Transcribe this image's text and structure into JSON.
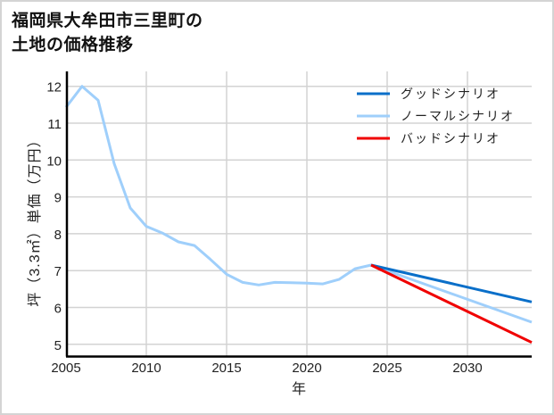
{
  "title_lines": [
    "福岡県大牟田市三里町の",
    "土地の価格推移"
  ],
  "colors": {
    "good": "#0a6fc9",
    "normal": "#9fcffb",
    "bad": "#f00000",
    "grid": "#d3d3d3",
    "axis": "#000000",
    "frame": "#d4d4d4"
  },
  "chart_data": {
    "type": "line",
    "title": "福岡県大牟田市三里町の土地の価格推移",
    "xlabel": "年",
    "ylabel": "坪（3.3㎡）単価（万円）",
    "xlim": [
      2005,
      2034
    ],
    "ylim": [
      4.68,
      12.4
    ],
    "x_ticks": [
      2005,
      2010,
      2015,
      2020,
      2025,
      2030
    ],
    "y_ticks": [
      5,
      6,
      7,
      8,
      9,
      10,
      11,
      12
    ],
    "grid": true,
    "legend_position": "upper right",
    "series": [
      {
        "name": "グッドシナリオ",
        "color": "#0a6fc9",
        "x": [
          2024,
          2034
        ],
        "values": [
          7.15,
          6.15
        ]
      },
      {
        "name": "ノーマルシナリオ",
        "color": "#9fcffb",
        "x": [
          2005,
          2006,
          2007,
          2008,
          2009,
          2010,
          2011,
          2012,
          2013,
          2014,
          2015,
          2016,
          2017,
          2018,
          2019,
          2020,
          2021,
          2022,
          2023,
          2024,
          2034
        ],
        "values": [
          11.43,
          12.0,
          11.62,
          9.9,
          8.7,
          8.2,
          8.02,
          7.78,
          7.68,
          7.3,
          6.9,
          6.68,
          6.61,
          6.68,
          6.67,
          6.66,
          6.64,
          6.76,
          7.05,
          7.15,
          5.6
        ]
      },
      {
        "name": "バッドシナリオ",
        "color": "#f00000",
        "x": [
          2024,
          2034
        ],
        "values": [
          7.15,
          5.05
        ]
      }
    ]
  }
}
